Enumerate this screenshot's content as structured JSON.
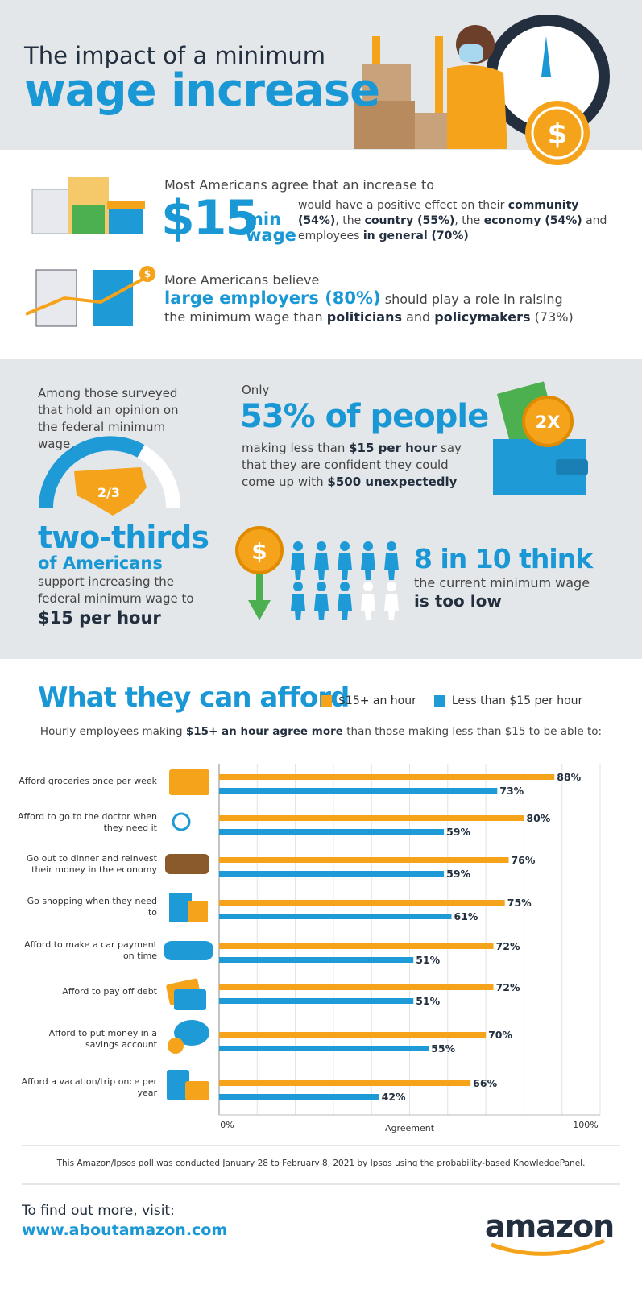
{
  "header": {
    "title_line1": "The impact of a minimum",
    "title_line2": "wage increase",
    "coin_symbol": "$"
  },
  "wage_section": {
    "intro": "Most Americans agree that an increase to",
    "amount": "$15",
    "amount_unit_top": "min",
    "amount_unit_bottom": "wage",
    "effect": [
      {
        "text": "would have a positive effect on their "
      },
      {
        "text": "community (54%)",
        "bold": true
      },
      {
        "text": ", the "
      },
      {
        "text": "country (55%)",
        "bold": true
      },
      {
        "text": ", the "
      },
      {
        "text": "economy (54%)",
        "bold": true
      },
      {
        "text": " and employees "
      },
      {
        "text": "in general (70%)",
        "bold": true
      }
    ],
    "employers_intro": "More Americans believe",
    "employers_line1": [
      {
        "text": "large employers (80%)",
        "highlight": true
      },
      {
        "text": " should play a role in raising"
      }
    ],
    "employers_line2": [
      {
        "text": "the minimum wage than "
      },
      {
        "text": "politicians",
        "bold": true
      },
      {
        "text": " and "
      },
      {
        "text": "policymakers",
        "bold": true
      },
      {
        "text": " (73%)"
      }
    ],
    "employers_coin": "$"
  },
  "opinion_section": {
    "intro": "Among those surveyed that hold an opinion on the federal minimum wage,",
    "map_label": "2/3",
    "headline": "two-thirds",
    "subhead": "of Americans",
    "body": "support increasing the federal minimum wage to",
    "amount": "$15 per hour",
    "only": "Only",
    "stat": "53% of people",
    "stat_body": [
      {
        "text": "making less than "
      },
      {
        "text": "$15 per hour",
        "bold": true
      },
      {
        "text": " say that they are confident they could come up with "
      },
      {
        "text": "$500 unexpectedly",
        "bold": true
      }
    ],
    "wallet_label": "2X",
    "coin_symbol": "$",
    "people_icons": {
      "count": 10,
      "filled": 8
    },
    "think_headline": "8 in 10 think",
    "think_line1": "the current minimum wage",
    "think_line2": "is too low"
  },
  "chart_data": {
    "type": "bar",
    "orientation": "horizontal",
    "title": "What they can afford",
    "subtitle": [
      {
        "text": "Hourly employees making "
      },
      {
        "text": "$15+ an hour agree more",
        "bold": true
      },
      {
        "text": " than those making less than $15 to be able to:"
      }
    ],
    "categories": [
      "Afford groceries once per week",
      "Afford to go to the doctor when they need it",
      "Go out to dinner and reinvest their money in the economy",
      "Go shopping when they need to",
      "Afford to make a car payment on time",
      "Afford to pay off debt",
      "Afford to put money in a savings account",
      "Afford a vacation/trip once per year"
    ],
    "series": [
      {
        "name": "$15+ an hour",
        "color": "#f5a31a",
        "values": [
          88,
          80,
          76,
          75,
          72,
          72,
          70,
          66
        ],
        "value_labels": [
          "88%",
          "80%",
          "76%",
          "75%",
          "72%",
          "72%",
          "70%",
          "66%"
        ]
      },
      {
        "name": "Less than $15 per hour",
        "color": "#1e9ad6",
        "values": [
          73,
          59,
          59,
          61,
          51,
          51,
          55,
          42
        ],
        "value_labels": [
          "73%",
          "59%",
          "59%",
          "61%",
          "51%",
          "51%",
          "55%",
          "42%"
        ]
      }
    ],
    "xlim": [
      0,
      100
    ],
    "xticks": [
      {
        "value": 0,
        "label": "0%"
      },
      {
        "value": 100,
        "label": "100%"
      }
    ],
    "minor_xticks": [
      10,
      20,
      30,
      40,
      50,
      60,
      70,
      80,
      90
    ],
    "xlabel": "Agreement",
    "grid": true,
    "legend": "top-right"
  },
  "footnote": "This Amazon/Ipsos poll was conducted January 28 to February 8, 2021 by Ipsos using the probability-based KnowledgePanel.",
  "footer": {
    "prompt": "To find out more, visit:",
    "url": "www.aboutamazon.com",
    "logo": "amazon"
  }
}
